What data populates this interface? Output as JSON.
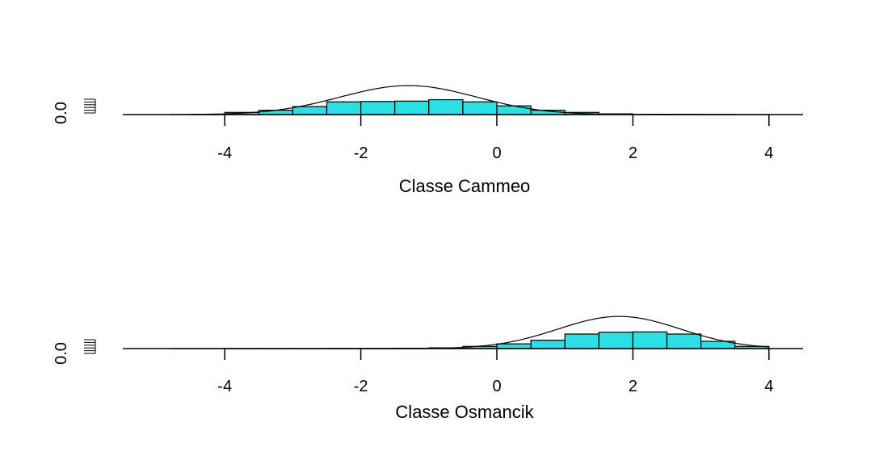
{
  "chart_data": [
    {
      "type": "bar",
      "xlabel": "Classe Cammeo",
      "ylabel_tick": "0.0",
      "xlim": [
        -5.5,
        4.5
      ],
      "x_ticks": [
        "-4",
        "-2",
        "0",
        "2",
        "4"
      ],
      "x_tick_values": [
        -4,
        -2,
        0,
        2,
        4
      ],
      "bin_edges": [
        -4.5,
        -4.0,
        -3.5,
        -3.0,
        -2.5,
        -2.0,
        -1.5,
        -1.0,
        -0.5,
        0.0,
        0.5,
        1.0,
        1.5,
        2.0,
        2.5,
        3.0,
        3.5
      ],
      "density": [
        0.003,
        0.03,
        0.06,
        0.11,
        0.175,
        0.18,
        0.185,
        0.205,
        0.175,
        0.12,
        0.06,
        0.03,
        0.01,
        0.004,
        0.003,
        0.002
      ],
      "normal_curve": {
        "mean": -1.3,
        "sd": 1.0
      },
      "fill_color": "#2ae0e0"
    },
    {
      "type": "bar",
      "xlabel": "Classe Osmancik",
      "ylabel_tick": "0.0",
      "xlim": [
        -5.5,
        4.5
      ],
      "x_ticks": [
        "-4",
        "-2",
        "0",
        "2",
        "4"
      ],
      "x_tick_values": [
        -4,
        -2,
        0,
        2,
        4
      ],
      "bin_edges": [
        -4.0,
        -3.5,
        -3.0,
        -2.5,
        -2.0,
        -1.5,
        -1.0,
        -0.5,
        0.0,
        0.5,
        1.0,
        1.5,
        2.0,
        2.5,
        3.0,
        3.5,
        4.0
      ],
      "density": [
        0.001,
        0.001,
        0.001,
        0.002,
        0.002,
        0.005,
        0.01,
        0.03,
        0.065,
        0.115,
        0.2,
        0.225,
        0.23,
        0.2,
        0.1,
        0.03
      ],
      "normal_curve": {
        "mean": 1.8,
        "sd": 0.9
      },
      "fill_color": "#2ae0e0"
    }
  ]
}
